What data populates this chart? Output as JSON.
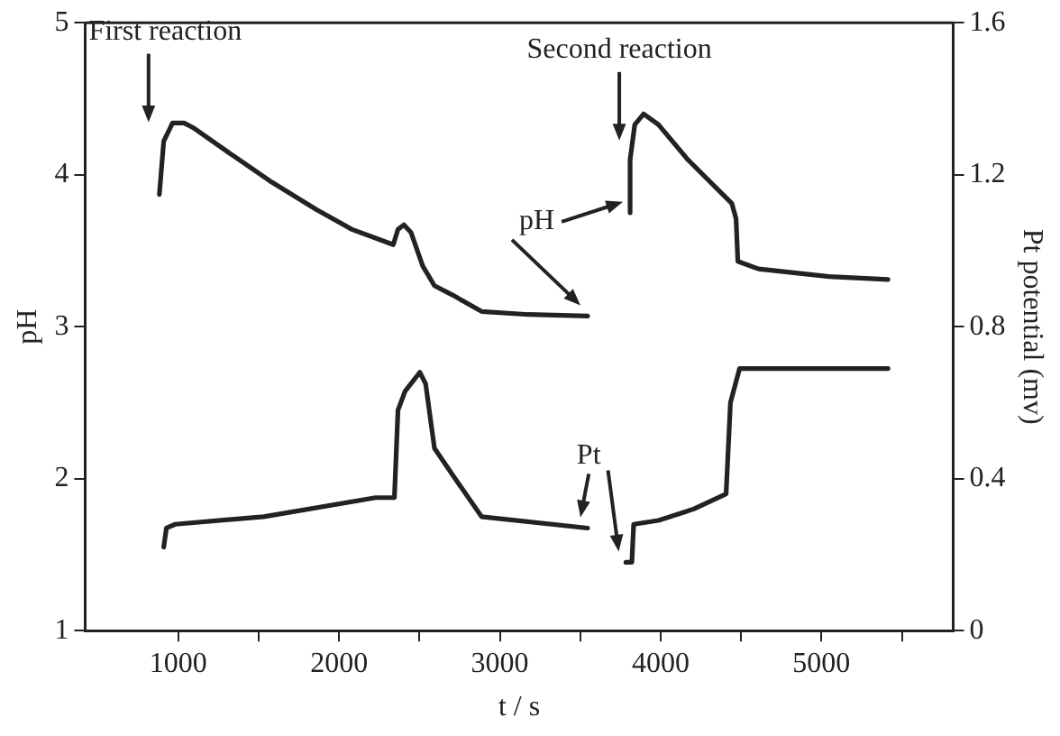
{
  "chart_data": {
    "type": "line",
    "xlabel": "t / s",
    "ylabel": "pH",
    "y2label": "Pt potential (mv)",
    "xlim": [
      420,
      5820
    ],
    "xticks": [
      1000,
      {
        "value": 1500,
        "label": null
      },
      2000,
      {
        "value": 2500,
        "label": null
      },
      3000,
      {
        "value": 3500,
        "label": null
      },
      4000,
      {
        "value": 4500,
        "label": null
      },
      5000,
      {
        "value": 5500,
        "label": null
      }
    ],
    "ylim": [
      1,
      5
    ],
    "yticks": [
      1,
      2,
      3,
      4,
      5
    ],
    "y2lim": [
      0,
      1.6
    ],
    "y2ticks": [
      0,
      0.4,
      0.8,
      1.2,
      1.6
    ],
    "grid": false,
    "marker": "none",
    "line_style": "solid",
    "series": [
      {
        "name": "pH",
        "color": "#222222",
        "x": [
          882,
          909,
          964,
          1036,
          1091,
          1348,
          1568,
          1860,
          2080,
          2337,
          2366,
          2403,
          2447,
          2520,
          2593,
          2703,
          2886,
          3179,
          3546,
          3680,
          3810,
          3810,
          3839,
          3894,
          3986,
          4168,
          4443,
          4469,
          4480,
          4608,
          5047,
          5414
        ],
        "values": [
          3.87,
          4.22,
          4.34,
          4.34,
          4.31,
          4.12,
          3.96,
          3.77,
          3.64,
          3.54,
          3.64,
          3.67,
          3.62,
          3.4,
          3.27,
          3.21,
          3.1,
          3.08,
          3.07,
          null,
          3.75,
          4.1,
          4.33,
          4.4,
          4.33,
          4.1,
          3.81,
          3.71,
          3.43,
          3.38,
          3.33,
          3.31
        ]
      },
      {
        "name": "Pt",
        "color": "#222222",
        "axis": "y2",
        "x": [
          909,
          926,
          981,
          1531,
          2227,
          2344,
          2366,
          2410,
          2502,
          2538,
          2593,
          2722,
          2886,
          3546,
          3660,
          3784,
          3821,
          3832,
          3986,
          4205,
          4407,
          4434,
          4491,
          5414
        ],
        "values": [
          0.22,
          0.27,
          0.28,
          0.3,
          0.35,
          0.35,
          0.58,
          0.63,
          0.68,
          0.65,
          0.48,
          0.4,
          0.3,
          0.27,
          null,
          0.18,
          0.18,
          0.28,
          0.29,
          0.32,
          0.36,
          0.6,
          0.69,
          0.69
        ]
      }
    ],
    "annotations": [
      "First reaction",
      "Second reaction"
    ]
  }
}
